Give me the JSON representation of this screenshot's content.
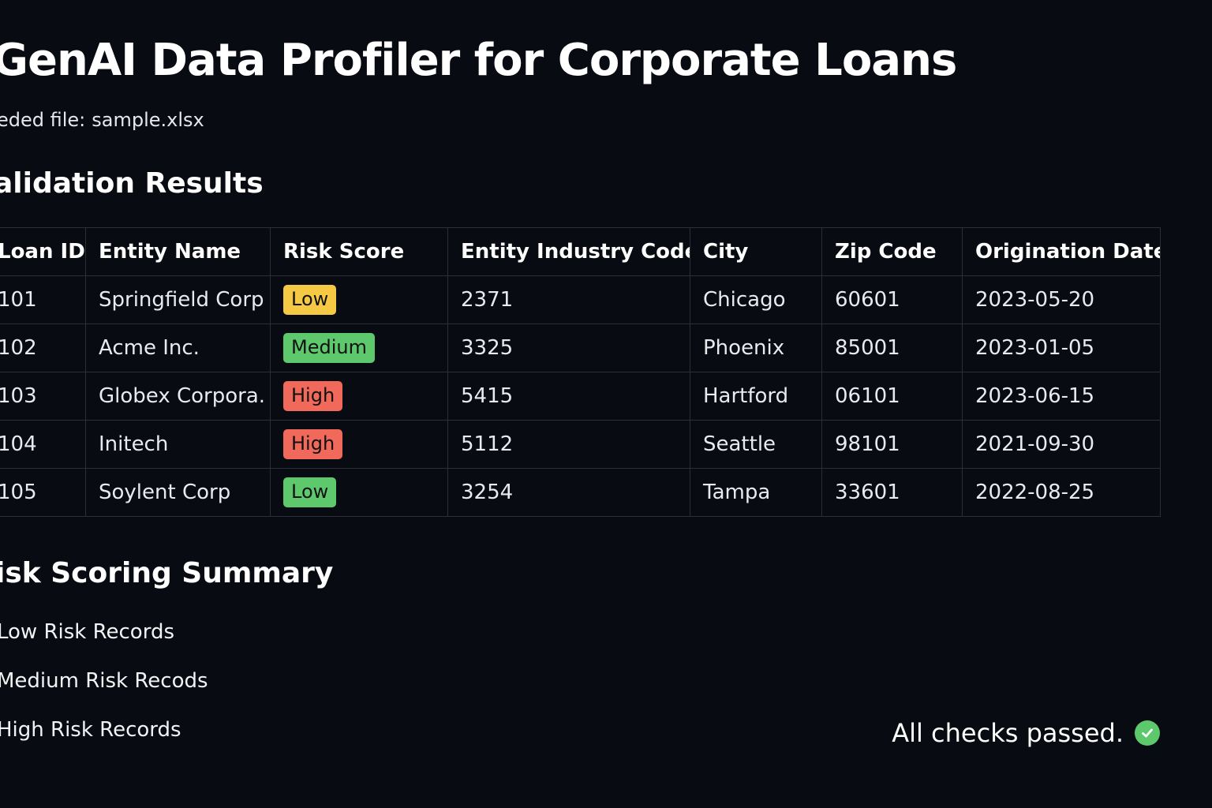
{
  "header": {
    "title": "GenAI Data Profiler for Corporate Loans",
    "file_label": "eded file:",
    "file_name": "sample.xlsx"
  },
  "validation": {
    "heading": "alidation Results",
    "columns": [
      "Loan ID",
      "Entity Name",
      "Risk Score",
      "Entity Industry Code",
      "City",
      "Zip Code",
      "Origination Date"
    ],
    "rows": [
      {
        "loan_id": "101",
        "entity": "Springfield Corp",
        "risk": "Low",
        "risk_color": "#f6c945",
        "industry": "2371",
        "city": "Chicago",
        "zip": "60601",
        "date": "2023-05-20"
      },
      {
        "loan_id": "102",
        "entity": "Acme Inc.",
        "risk": "Medium",
        "risk_color": "#5ec86d",
        "industry": "3325",
        "city": "Phoenix",
        "zip": "85001",
        "date": "2023-01-05"
      },
      {
        "loan_id": "103",
        "entity": "Globex Corpora.",
        "risk": "High",
        "risk_color": "#f0695a",
        "industry": "5415",
        "city": "Hartford",
        "zip": "06101",
        "date": "2023-06-15"
      },
      {
        "loan_id": "104",
        "entity": "Initech",
        "risk": "High",
        "risk_color": "#f0695a",
        "industry": "5112",
        "city": "Seattle",
        "zip": "98101",
        "date": "2021-09-30"
      },
      {
        "loan_id": "105",
        "entity": "Soylent Corp",
        "risk": "Low",
        "risk_color": "#5ec86d",
        "industry": "3254",
        "city": "Tampa",
        "zip": "33601",
        "date": "2022-08-25"
      }
    ]
  },
  "summary": {
    "heading": "isk Scoring Summary",
    "items": [
      "Low Risk Records",
      "Medium Risk Recods",
      "High Risk Records"
    ]
  },
  "status": {
    "text": "All checks passed.",
    "icon": "check-circle-icon",
    "icon_color": "#5ec86d"
  },
  "colors": {
    "background": "#080b11",
    "badge_yellow": "#f6c945",
    "badge_green": "#5ec86d",
    "badge_red": "#f0695a"
  }
}
